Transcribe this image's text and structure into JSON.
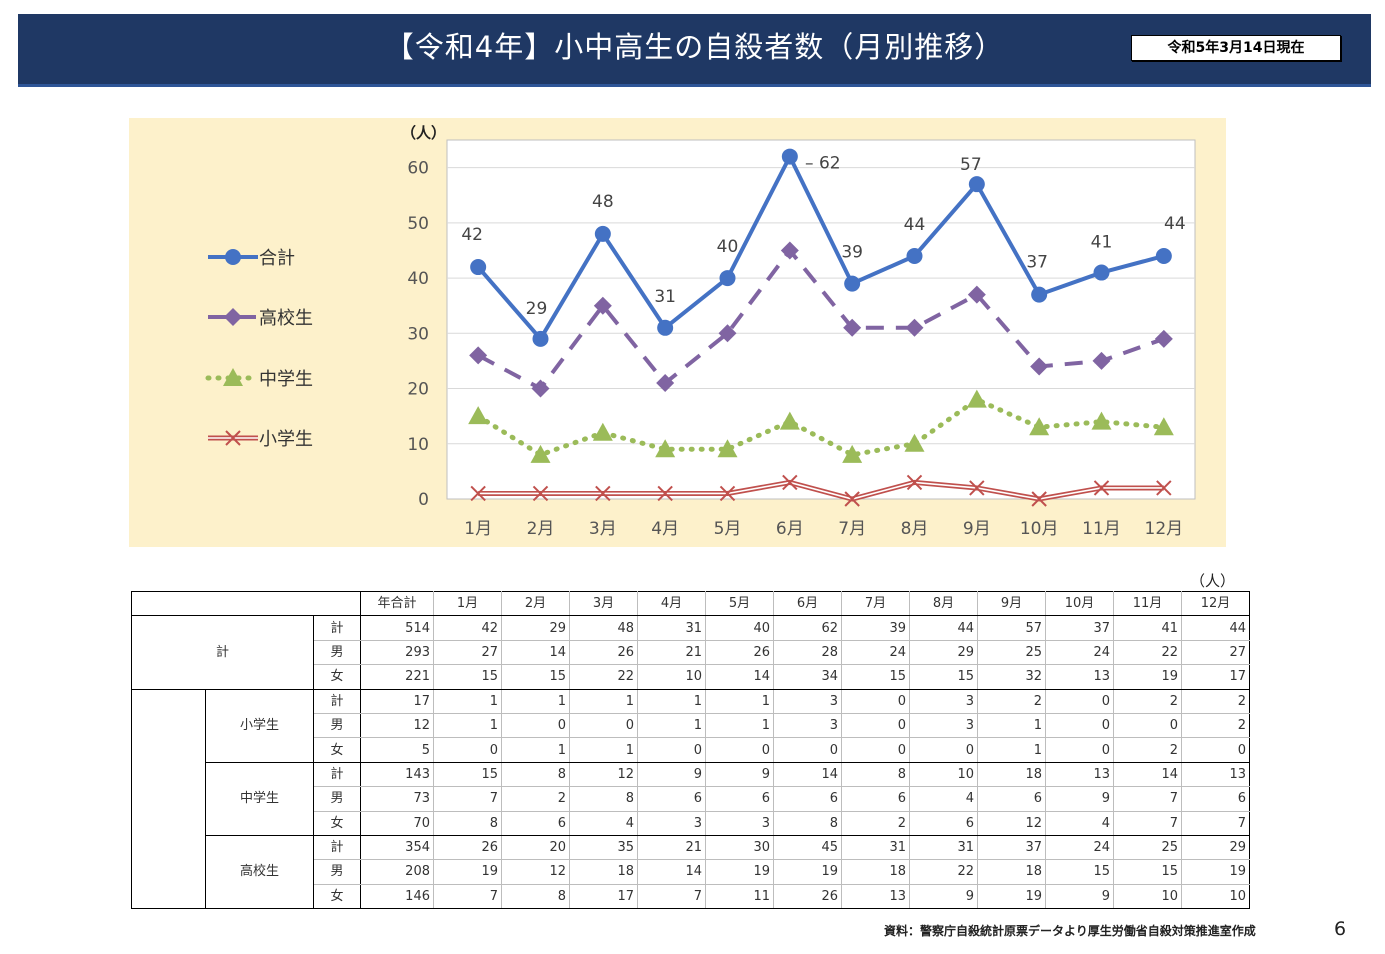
{
  "header": {
    "title": "【令和4年】小中高生の自殺者数（月別推移）",
    "as_of": "令和5年3月14日現在"
  },
  "chart_data": {
    "type": "line",
    "y_unit": "（人）",
    "categories": [
      "1月",
      "2月",
      "3月",
      "4月",
      "5月",
      "6月",
      "7月",
      "8月",
      "9月",
      "10月",
      "11月",
      "12月"
    ],
    "ylim": [
      0,
      65
    ],
    "yticks": [
      0,
      10,
      20,
      30,
      40,
      50,
      60
    ],
    "grid": true,
    "legend_position": "left",
    "series": [
      {
        "name": "合計",
        "values": [
          42,
          29,
          48,
          31,
          40,
          62,
          39,
          44,
          57,
          37,
          41,
          44
        ],
        "color": "#4472c4",
        "style": "solid-circle",
        "labels": [
          "42",
          "29",
          "48",
          "31",
          "40",
          "62",
          "39",
          "44",
          "57",
          "37",
          "41",
          "44"
        ]
      },
      {
        "name": "高校生",
        "values": [
          26,
          20,
          35,
          21,
          30,
          45,
          31,
          31,
          37,
          24,
          25,
          29
        ],
        "color": "#8064a2",
        "style": "dashed-diamond"
      },
      {
        "name": "中学生",
        "values": [
          15,
          8,
          12,
          9,
          9,
          14,
          8,
          10,
          18,
          13,
          14,
          13
        ],
        "color": "#9bbb59",
        "style": "dotted-triangle"
      },
      {
        "name": "小学生",
        "values": [
          1,
          1,
          1,
          1,
          1,
          3,
          0,
          3,
          2,
          0,
          2,
          2
        ],
        "color": "#c0504d",
        "style": "double-cross"
      }
    ]
  },
  "table": {
    "unit": "（人）",
    "header": [
      "年合計",
      "1月",
      "2月",
      "3月",
      "4月",
      "5月",
      "6月",
      "7月",
      "8月",
      "9月",
      "10月",
      "11月",
      "12月"
    ],
    "groups": [
      {
        "label": "計",
        "rows": [
          {
            "label": "計",
            "values": [
              "514",
              "42",
              "29",
              "48",
              "31",
              "40",
              "62",
              "39",
              "44",
              "57",
              "37",
              "41",
              "44"
            ]
          },
          {
            "label": "男",
            "values": [
              "293",
              "27",
              "14",
              "26",
              "21",
              "26",
              "28",
              "24",
              "29",
              "25",
              "24",
              "22",
              "27"
            ]
          },
          {
            "label": "女",
            "values": [
              "221",
              "15",
              "15",
              "22",
              "10",
              "14",
              "34",
              "15",
              "15",
              "32",
              "13",
              "19",
              "17"
            ]
          }
        ]
      },
      {
        "label": "小学生",
        "rows": [
          {
            "label": "計",
            "values": [
              "17",
              "1",
              "1",
              "1",
              "1",
              "1",
              "3",
              "0",
              "3",
              "2",
              "0",
              "2",
              "2"
            ]
          },
          {
            "label": "男",
            "values": [
              "12",
              "1",
              "0",
              "0",
              "1",
              "1",
              "3",
              "0",
              "3",
              "1",
              "0",
              "0",
              "2"
            ]
          },
          {
            "label": "女",
            "values": [
              "5",
              "0",
              "1",
              "1",
              "0",
              "0",
              "0",
              "0",
              "0",
              "1",
              "0",
              "2",
              "0"
            ]
          }
        ]
      },
      {
        "label": "中学生",
        "rows": [
          {
            "label": "計",
            "values": [
              "143",
              "15",
              "8",
              "12",
              "9",
              "9",
              "14",
              "8",
              "10",
              "18",
              "13",
              "14",
              "13"
            ]
          },
          {
            "label": "男",
            "values": [
              "73",
              "7",
              "2",
              "8",
              "6",
              "6",
              "6",
              "6",
              "4",
              "6",
              "9",
              "7",
              "6"
            ]
          },
          {
            "label": "女",
            "values": [
              "70",
              "8",
              "6",
              "4",
              "3",
              "3",
              "8",
              "2",
              "6",
              "12",
              "4",
              "7",
              "7"
            ]
          }
        ]
      },
      {
        "label": "高校生",
        "rows": [
          {
            "label": "計",
            "values": [
              "354",
              "26",
              "20",
              "35",
              "21",
              "30",
              "45",
              "31",
              "31",
              "37",
              "24",
              "25",
              "29"
            ]
          },
          {
            "label": "男",
            "values": [
              "208",
              "19",
              "12",
              "18",
              "14",
              "19",
              "19",
              "18",
              "22",
              "18",
              "15",
              "15",
              "19"
            ]
          },
          {
            "label": "女",
            "values": [
              "146",
              "7",
              "8",
              "17",
              "7",
              "11",
              "26",
              "13",
              "9",
              "19",
              "9",
              "10",
              "10"
            ]
          }
        ]
      }
    ]
  },
  "footer": {
    "source": "資料：警察庁自殺統計原票データより厚生労働省自殺対策推進室作成",
    "page": "6"
  }
}
